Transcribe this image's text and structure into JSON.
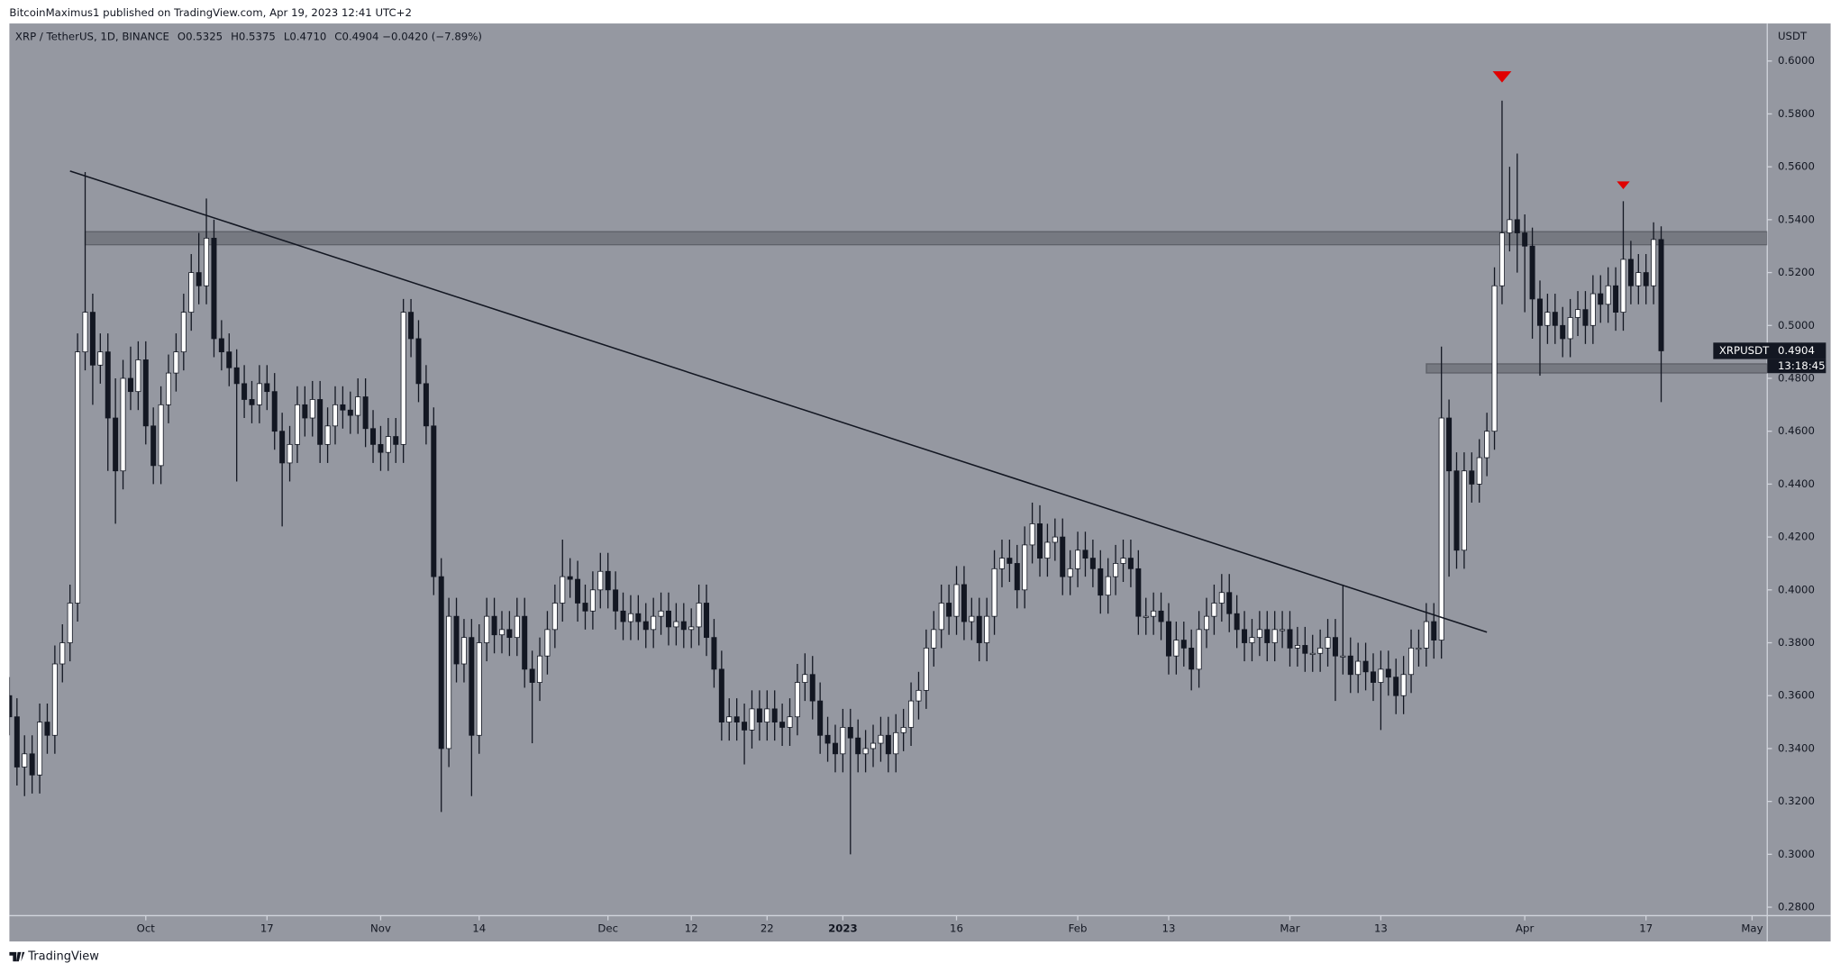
{
  "chart_data": {
    "type": "candlestick",
    "header": "BitcoinMaximus1 published on TradingView.com, Apr 19, 2023 12:41 UTC+2",
    "symbol": "XRP / TetherUS, 1D, BINANCE",
    "quote": [
      {
        "k": "O",
        "v": "0.5325"
      },
      {
        "k": "H",
        "v": "0.5375"
      },
      {
        "k": "L",
        "v": "0.4710"
      },
      {
        "k": "C",
        "v": "0.4904"
      }
    ],
    "change": "−0.0420 (−7.89%)",
    "y_unit": "USDT",
    "symbol_label": "XRPUSDT",
    "countdown": "13:18:45",
    "footer": "TradingView",
    "up_color": "#ffffff",
    "down_color": "#131722",
    "wick_color": "#131722",
    "background": "#9598a1",
    "xlim": [
      "2022-09-13",
      "2023-05-03"
    ],
    "ylim": [
      0.2768,
      0.6142
    ],
    "xticks": [
      {
        "value": "2022-10-01",
        "label": "Oct"
      },
      {
        "value": "2022-10-17",
        "label": "17"
      },
      {
        "value": "2022-11-01",
        "label": "Nov"
      },
      {
        "value": "2022-11-14",
        "label": "14"
      },
      {
        "value": "2022-12-01",
        "label": "Dec"
      },
      {
        "value": "2022-12-12",
        "label": "12"
      },
      {
        "value": "2022-12-22",
        "label": "22"
      },
      {
        "value": "2023-01-01",
        "label": "2023"
      },
      {
        "value": "2023-01-16",
        "label": "16"
      },
      {
        "value": "2023-02-01",
        "label": "Feb"
      },
      {
        "value": "2023-02-13",
        "label": "13"
      },
      {
        "value": "2023-03-01",
        "label": "Mar"
      },
      {
        "value": "2023-03-13",
        "label": "13"
      },
      {
        "value": "2023-04-01",
        "label": "Apr"
      },
      {
        "value": "2023-04-17",
        "label": "17"
      },
      {
        "value": "2023-05-01",
        "label": "May"
      }
    ],
    "yticks": [
      {
        "value": 0.28,
        "label": "0.2800"
      },
      {
        "value": 0.3,
        "label": "0.3000"
      },
      {
        "value": 0.32,
        "label": "0.3200"
      },
      {
        "value": 0.34,
        "label": "0.3400"
      },
      {
        "value": 0.36,
        "label": "0.3600"
      },
      {
        "value": 0.38,
        "label": "0.3800"
      },
      {
        "value": 0.4,
        "label": "0.4000"
      },
      {
        "value": 0.42,
        "label": "0.4200"
      },
      {
        "value": 0.44,
        "label": "0.4400"
      },
      {
        "value": 0.46,
        "label": "0.4600"
      },
      {
        "value": 0.48,
        "label": "0.4800"
      },
      {
        "value": 0.5,
        "label": "0.5000"
      },
      {
        "value": 0.52,
        "label": "0.5200"
      },
      {
        "value": 0.54,
        "label": "0.5400"
      },
      {
        "value": 0.56,
        "label": "0.5600"
      },
      {
        "value": 0.58,
        "label": "0.5800"
      },
      {
        "value": 0.6,
        "label": "0.6000"
      }
    ],
    "x": [
      "2022-09-13",
      "2022-09-14",
      "2022-09-15",
      "2022-09-16",
      "2022-09-17",
      "2022-09-18",
      "2022-09-19",
      "2022-09-20",
      "2022-09-21",
      "2022-09-22",
      "2022-09-23",
      "2022-09-24",
      "2022-09-25",
      "2022-09-26",
      "2022-09-27",
      "2022-09-28",
      "2022-09-29",
      "2022-09-30",
      "2022-10-01",
      "2022-10-02",
      "2022-10-03",
      "2022-10-04",
      "2022-10-05",
      "2022-10-06",
      "2022-10-07",
      "2022-10-08",
      "2022-10-09",
      "2022-10-10",
      "2022-10-11",
      "2022-10-12",
      "2022-10-13",
      "2022-10-14",
      "2022-10-15",
      "2022-10-16",
      "2022-10-17",
      "2022-10-18",
      "2022-10-19",
      "2022-10-20",
      "2022-10-21",
      "2022-10-22",
      "2022-10-23",
      "2022-10-24",
      "2022-10-25",
      "2022-10-26",
      "2022-10-27",
      "2022-10-28",
      "2022-10-29",
      "2022-10-30",
      "2022-10-31",
      "2022-11-01",
      "2022-11-02",
      "2022-11-03",
      "2022-11-04",
      "2022-11-05",
      "2022-11-06",
      "2022-11-07",
      "2022-11-08",
      "2022-11-09",
      "2022-11-10",
      "2022-11-11",
      "2022-11-12",
      "2022-11-13",
      "2022-11-14",
      "2022-11-15",
      "2022-11-16",
      "2022-11-17",
      "2022-11-18",
      "2022-11-19",
      "2022-11-20",
      "2022-11-21",
      "2022-11-22",
      "2022-11-23",
      "2022-11-24",
      "2022-11-25",
      "2022-11-26",
      "2022-11-27",
      "2022-11-28",
      "2022-11-29",
      "2022-11-30",
      "2022-12-01",
      "2022-12-02",
      "2022-12-03",
      "2022-12-04",
      "2022-12-05",
      "2022-12-06",
      "2022-12-07",
      "2022-12-08",
      "2022-12-09",
      "2022-12-10",
      "2022-12-11",
      "2022-12-12",
      "2022-12-13",
      "2022-12-14",
      "2022-12-15",
      "2022-12-16",
      "2022-12-17",
      "2022-12-18",
      "2022-12-19",
      "2022-12-20",
      "2022-12-21",
      "2022-12-22",
      "2022-12-23",
      "2022-12-24",
      "2022-12-25",
      "2022-12-26",
      "2022-12-27",
      "2022-12-28",
      "2022-12-29",
      "2022-12-30",
      "2022-12-31",
      "2023-01-01",
      "2023-01-02",
      "2023-01-03",
      "2023-01-04",
      "2023-01-05",
      "2023-01-06",
      "2023-01-07",
      "2023-01-08",
      "2023-01-09",
      "2023-01-10",
      "2023-01-11",
      "2023-01-12",
      "2023-01-13",
      "2023-01-14",
      "2023-01-15",
      "2023-01-16",
      "2023-01-17",
      "2023-01-18",
      "2023-01-19",
      "2023-01-20",
      "2023-01-21",
      "2023-01-22",
      "2023-01-23",
      "2023-01-24",
      "2023-01-25",
      "2023-01-26",
      "2023-01-27",
      "2023-01-28",
      "2023-01-29",
      "2023-01-30",
      "2023-01-31",
      "2023-02-01",
      "2023-02-02",
      "2023-02-03",
      "2023-02-04",
      "2023-02-05",
      "2023-02-06",
      "2023-02-07",
      "2023-02-08",
      "2023-02-09",
      "2023-02-10",
      "2023-02-11",
      "2023-02-12",
      "2023-02-13",
      "2023-02-14",
      "2023-02-15",
      "2023-02-16",
      "2023-02-17",
      "2023-02-18",
      "2023-02-19",
      "2023-02-20",
      "2023-02-21",
      "2023-02-22",
      "2023-02-23",
      "2023-02-24",
      "2023-02-25",
      "2023-02-26",
      "2023-02-27",
      "2023-02-28",
      "2023-03-01",
      "2023-03-02",
      "2023-03-03",
      "2023-03-04",
      "2023-03-05",
      "2023-03-06",
      "2023-03-07",
      "2023-03-08",
      "2023-03-09",
      "2023-03-10",
      "2023-03-11",
      "2023-03-12",
      "2023-03-13",
      "2023-03-14",
      "2023-03-15",
      "2023-03-16",
      "2023-03-17",
      "2023-03-18",
      "2023-03-19",
      "2023-03-20",
      "2023-03-21",
      "2023-03-22",
      "2023-03-23",
      "2023-03-24",
      "2023-03-25",
      "2023-03-26",
      "2023-03-27",
      "2023-03-28",
      "2023-03-29",
      "2023-03-30",
      "2023-03-31",
      "2023-04-01",
      "2023-04-02",
      "2023-04-03",
      "2023-04-04",
      "2023-04-05",
      "2023-04-06",
      "2023-04-07",
      "2023-04-08",
      "2023-04-09",
      "2023-04-10",
      "2023-04-11",
      "2023-04-12",
      "2023-04-13",
      "2023-04-14",
      "2023-04-15",
      "2023-04-16",
      "2023-04-17",
      "2023-04-18",
      "2023-04-19"
    ],
    "open": [
      0.36,
      0.352,
      0.333,
      0.338,
      0.33,
      0.35,
      0.345,
      0.372,
      0.38,
      0.395,
      0.49,
      0.505,
      0.485,
      0.49,
      0.465,
      0.445,
      0.48,
      0.475,
      0.487,
      0.462,
      0.447,
      0.47,
      0.482,
      0.49,
      0.505,
      0.52,
      0.515,
      0.533,
      0.495,
      0.49,
      0.484,
      0.478,
      0.472,
      0.47,
      0.478,
      0.475,
      0.46,
      0.448,
      0.455,
      0.47,
      0.465,
      0.472,
      0.455,
      0.462,
      0.47,
      0.468,
      0.466,
      0.473,
      0.461,
      0.455,
      0.452,
      0.458,
      0.455,
      0.505,
      0.495,
      0.478,
      0.462,
      0.405,
      0.34,
      0.39,
      0.372,
      0.382,
      0.345,
      0.38,
      0.39,
      0.383,
      0.385,
      0.382,
      0.39,
      0.37,
      0.365,
      0.375,
      0.385,
      0.395,
      0.405,
      0.404,
      0.395,
      0.392,
      0.4,
      0.407,
      0.4,
      0.392,
      0.388,
      0.391,
      0.388,
      0.385,
      0.39,
      0.392,
      0.386,
      0.388,
      0.385,
      0.386,
      0.395,
      0.382,
      0.37,
      0.35,
      0.352,
      0.35,
      0.347,
      0.355,
      0.35,
      0.355,
      0.35,
      0.348,
      0.352,
      0.365,
      0.368,
      0.358,
      0.345,
      0.342,
      0.338,
      0.348,
      0.344,
      0.338,
      0.34,
      0.342,
      0.345,
      0.338,
      0.346,
      0.348,
      0.358,
      0.362,
      0.378,
      0.385,
      0.395,
      0.39,
      0.402,
      0.388,
      0.39,
      0.38,
      0.39,
      0.408,
      0.412,
      0.41,
      0.4,
      0.417,
      0.425,
      0.412,
      0.418,
      0.42,
      0.405,
      0.408,
      0.415,
      0.412,
      0.408,
      0.398,
      0.405,
      0.41,
      0.412,
      0.408,
      0.39,
      0.39,
      0.392,
      0.388,
      0.375,
      0.381,
      0.378,
      0.37,
      0.385,
      0.39,
      0.395,
      0.399,
      0.391,
      0.385,
      0.38,
      0.382,
      0.385,
      0.38,
      0.385,
      0.385,
      0.378,
      0.379,
      0.376,
      0.376,
      0.378,
      0.382,
      0.375,
      0.375,
      0.368,
      0.373,
      0.369,
      0.365,
      0.37,
      0.367,
      0.36,
      0.368,
      0.378,
      0.378,
      0.388,
      0.381,
      0.465,
      0.445,
      0.415,
      0.445,
      0.44,
      0.45,
      0.46,
      0.515,
      0.535,
      0.54,
      0.535,
      0.53,
      0.51,
      0.5,
      0.505,
      0.5,
      0.495,
      0.503,
      0.506,
      0.5,
      0.512,
      0.508,
      0.515,
      0.505,
      0.525,
      0.515,
      0.52,
      0.515,
      0.5325
    ],
    "high": [
      0.367,
      0.359,
      0.345,
      0.345,
      0.357,
      0.357,
      0.379,
      0.387,
      0.402,
      0.497,
      0.558,
      0.512,
      0.497,
      0.497,
      0.48,
      0.487,
      0.492,
      0.494,
      0.494,
      0.469,
      0.477,
      0.489,
      0.497,
      0.512,
      0.527,
      0.535,
      0.548,
      0.54,
      0.502,
      0.497,
      0.491,
      0.485,
      0.479,
      0.485,
      0.485,
      0.482,
      0.467,
      0.462,
      0.477,
      0.477,
      0.479,
      0.479,
      0.469,
      0.477,
      0.477,
      0.475,
      0.48,
      0.48,
      0.468,
      0.462,
      0.465,
      0.465,
      0.51,
      0.51,
      0.502,
      0.485,
      0.469,
      0.412,
      0.397,
      0.397,
      0.389,
      0.389,
      0.387,
      0.397,
      0.397,
      0.392,
      0.392,
      0.397,
      0.397,
      0.377,
      0.382,
      0.392,
      0.402,
      0.419,
      0.412,
      0.411,
      0.402,
      0.407,
      0.414,
      0.414,
      0.407,
      0.399,
      0.398,
      0.398,
      0.395,
      0.397,
      0.399,
      0.399,
      0.395,
      0.395,
      0.393,
      0.402,
      0.402,
      0.389,
      0.377,
      0.359,
      0.359,
      0.357,
      0.362,
      0.362,
      0.362,
      0.362,
      0.357,
      0.359,
      0.372,
      0.376,
      0.375,
      0.365,
      0.352,
      0.349,
      0.355,
      0.355,
      0.351,
      0.347,
      0.349,
      0.352,
      0.352,
      0.353,
      0.355,
      0.365,
      0.369,
      0.385,
      0.392,
      0.402,
      0.402,
      0.409,
      0.409,
      0.397,
      0.397,
      0.397,
      0.415,
      0.419,
      0.419,
      0.417,
      0.424,
      0.433,
      0.432,
      0.425,
      0.427,
      0.427,
      0.415,
      0.422,
      0.422,
      0.419,
      0.415,
      0.412,
      0.417,
      0.419,
      0.419,
      0.415,
      0.397,
      0.399,
      0.399,
      0.395,
      0.388,
      0.388,
      0.385,
      0.392,
      0.397,
      0.402,
      0.406,
      0.406,
      0.398,
      0.392,
      0.389,
      0.392,
      0.392,
      0.392,
      0.392,
      0.392,
      0.386,
      0.386,
      0.383,
      0.385,
      0.389,
      0.389,
      0.402,
      0.382,
      0.38,
      0.38,
      0.376,
      0.377,
      0.377,
      0.374,
      0.375,
      0.385,
      0.385,
      0.395,
      0.395,
      0.492,
      0.472,
      0.452,
      0.452,
      0.452,
      0.457,
      0.467,
      0.522,
      0.585,
      0.56,
      0.565,
      0.542,
      0.537,
      0.517,
      0.512,
      0.512,
      0.507,
      0.51,
      0.513,
      0.513,
      0.519,
      0.519,
      0.522,
      0.522,
      0.547,
      0.532,
      0.527,
      0.527,
      0.539,
      0.5375
    ],
    "low": [
      0.345,
      0.326,
      0.322,
      0.323,
      0.323,
      0.338,
      0.338,
      0.365,
      0.373,
      0.388,
      0.483,
      0.47,
      0.478,
      0.445,
      0.425,
      0.438,
      0.468,
      0.468,
      0.455,
      0.44,
      0.44,
      0.463,
      0.475,
      0.483,
      0.498,
      0.508,
      0.508,
      0.488,
      0.483,
      0.477,
      0.441,
      0.465,
      0.463,
      0.463,
      0.468,
      0.453,
      0.424,
      0.441,
      0.448,
      0.458,
      0.458,
      0.448,
      0.448,
      0.455,
      0.461,
      0.459,
      0.459,
      0.454,
      0.448,
      0.445,
      0.445,
      0.448,
      0.448,
      0.488,
      0.471,
      0.455,
      0.398,
      0.316,
      0.333,
      0.365,
      0.365,
      0.322,
      0.338,
      0.373,
      0.376,
      0.376,
      0.375,
      0.375,
      0.363,
      0.342,
      0.358,
      0.368,
      0.378,
      0.388,
      0.397,
      0.388,
      0.385,
      0.385,
      0.393,
      0.393,
      0.385,
      0.381,
      0.381,
      0.381,
      0.378,
      0.378,
      0.383,
      0.379,
      0.379,
      0.378,
      0.378,
      0.379,
      0.375,
      0.363,
      0.343,
      0.343,
      0.343,
      0.334,
      0.34,
      0.343,
      0.343,
      0.343,
      0.341,
      0.341,
      0.345,
      0.358,
      0.351,
      0.338,
      0.335,
      0.331,
      0.331,
      0.3,
      0.331,
      0.331,
      0.333,
      0.335,
      0.331,
      0.331,
      0.339,
      0.341,
      0.351,
      0.355,
      0.371,
      0.378,
      0.383,
      0.383,
      0.381,
      0.381,
      0.373,
      0.373,
      0.383,
      0.401,
      0.403,
      0.393,
      0.393,
      0.41,
      0.405,
      0.405,
      0.411,
      0.398,
      0.398,
      0.401,
      0.405,
      0.401,
      0.391,
      0.391,
      0.398,
      0.403,
      0.401,
      0.383,
      0.383,
      0.383,
      0.381,
      0.368,
      0.368,
      0.371,
      0.362,
      0.363,
      0.378,
      0.383,
      0.388,
      0.384,
      0.378,
      0.373,
      0.373,
      0.375,
      0.373,
      0.373,
      0.378,
      0.371,
      0.371,
      0.369,
      0.369,
      0.369,
      0.371,
      0.358,
      0.368,
      0.361,
      0.361,
      0.362,
      0.358,
      0.347,
      0.36,
      0.353,
      0.353,
      0.361,
      0.371,
      0.371,
      0.374,
      0.374,
      0.405,
      0.408,
      0.408,
      0.433,
      0.433,
      0.443,
      0.453,
      0.508,
      0.528,
      0.52,
      0.505,
      0.495,
      0.481,
      0.493,
      0.493,
      0.488,
      0.488,
      0.496,
      0.493,
      0.493,
      0.501,
      0.501,
      0.498,
      0.498,
      0.508,
      0.508,
      0.508,
      0.508,
      0.471
    ],
    "close": [
      0.352,
      0.333,
      0.338,
      0.33,
      0.35,
      0.345,
      0.372,
      0.38,
      0.395,
      0.49,
      0.505,
      0.485,
      0.49,
      0.465,
      0.445,
      0.48,
      0.475,
      0.487,
      0.462,
      0.447,
      0.47,
      0.482,
      0.49,
      0.505,
      0.52,
      0.515,
      0.533,
      0.495,
      0.49,
      0.484,
      0.478,
      0.472,
      0.47,
      0.478,
      0.475,
      0.46,
      0.448,
      0.455,
      0.47,
      0.465,
      0.472,
      0.455,
      0.462,
      0.47,
      0.468,
      0.466,
      0.473,
      0.461,
      0.455,
      0.452,
      0.458,
      0.455,
      0.505,
      0.495,
      0.478,
      0.462,
      0.405,
      0.34,
      0.39,
      0.372,
      0.382,
      0.345,
      0.38,
      0.39,
      0.383,
      0.385,
      0.382,
      0.39,
      0.37,
      0.365,
      0.375,
      0.385,
      0.395,
      0.405,
      0.404,
      0.395,
      0.392,
      0.4,
      0.407,
      0.4,
      0.392,
      0.388,
      0.391,
      0.388,
      0.385,
      0.39,
      0.392,
      0.386,
      0.388,
      0.385,
      0.386,
      0.395,
      0.382,
      0.37,
      0.35,
      0.352,
      0.35,
      0.347,
      0.355,
      0.35,
      0.355,
      0.35,
      0.348,
      0.352,
      0.365,
      0.368,
      0.358,
      0.345,
      0.342,
      0.338,
      0.348,
      0.344,
      0.338,
      0.34,
      0.342,
      0.345,
      0.338,
      0.346,
      0.348,
      0.358,
      0.362,
      0.378,
      0.385,
      0.395,
      0.39,
      0.402,
      0.388,
      0.39,
      0.38,
      0.39,
      0.408,
      0.412,
      0.41,
      0.4,
      0.417,
      0.425,
      0.412,
      0.418,
      0.42,
      0.405,
      0.408,
      0.415,
      0.412,
      0.408,
      0.398,
      0.405,
      0.41,
      0.412,
      0.408,
      0.39,
      0.39,
      0.392,
      0.388,
      0.375,
      0.381,
      0.378,
      0.37,
      0.385,
      0.39,
      0.395,
      0.399,
      0.391,
      0.385,
      0.38,
      0.382,
      0.385,
      0.38,
      0.385,
      0.385,
      0.378,
      0.379,
      0.376,
      0.376,
      0.378,
      0.382,
      0.375,
      0.375,
      0.368,
      0.373,
      0.369,
      0.365,
      0.37,
      0.367,
      0.36,
      0.368,
      0.378,
      0.378,
      0.388,
      0.381,
      0.465,
      0.445,
      0.415,
      0.445,
      0.44,
      0.45,
      0.46,
      0.515,
      0.535,
      0.54,
      0.535,
      0.53,
      0.51,
      0.5,
      0.505,
      0.5,
      0.495,
      0.503,
      0.506,
      0.5,
      0.512,
      0.508,
      0.515,
      0.505,
      0.525,
      0.515,
      0.52,
      0.515,
      0.5325,
      0.4904
    ],
    "trendline": {
      "x": [
        "2022-09-21",
        "2023-03-27"
      ],
      "y": [
        0.5584,
        0.384
      ],
      "color": "#131722"
    },
    "zones": [
      {
        "x0": "2022-09-23",
        "low": 0.5305,
        "high": 0.5355
      },
      {
        "x0": "2023-03-19",
        "low": 0.482,
        "high": 0.4855
      }
    ],
    "markers": [
      {
        "x": "2023-03-29",
        "y": 0.594
      },
      {
        "x": "2023-04-14",
        "y": 0.553
      }
    ],
    "marker_color": "#e00000"
  }
}
